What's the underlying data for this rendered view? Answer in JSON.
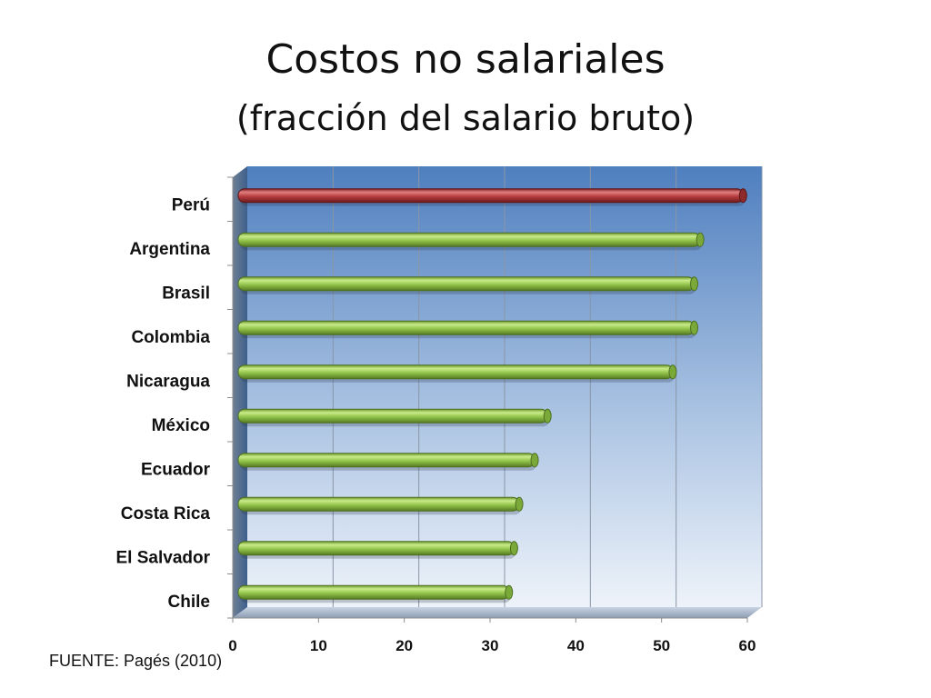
{
  "slide": {
    "title": "Costos no salariales",
    "subtitle": "(fracción del salario bruto)",
    "source": "FUENTE: Pagés (2010)"
  },
  "chart_data": {
    "type": "bar",
    "orientation": "horizontal",
    "title": "Costos no salariales",
    "subtitle": "(fracción del salario bruto)",
    "categories": [
      "Perú",
      "Argentina",
      "Brasil",
      "Colombia",
      "Nicaragua",
      "México",
      "Ecuador",
      "Costa Rica",
      "El Salvador",
      "Chile"
    ],
    "values": [
      59.5,
      54.5,
      53.8,
      53.8,
      51.3,
      36.7,
      35.2,
      33.4,
      32.8,
      32.2
    ],
    "highlight_category": "Perú",
    "xlim": [
      0,
      60
    ],
    "xticks": [
      0,
      10,
      20,
      30,
      40,
      50,
      60
    ],
    "xlabel": "",
    "ylabel": "",
    "grid": true,
    "colors": {
      "highlight": "#b03a3c",
      "default": "#92c64a",
      "plot_bg_top": "#4f7fbf",
      "plot_bg_bottom": "#eef3fa"
    }
  }
}
